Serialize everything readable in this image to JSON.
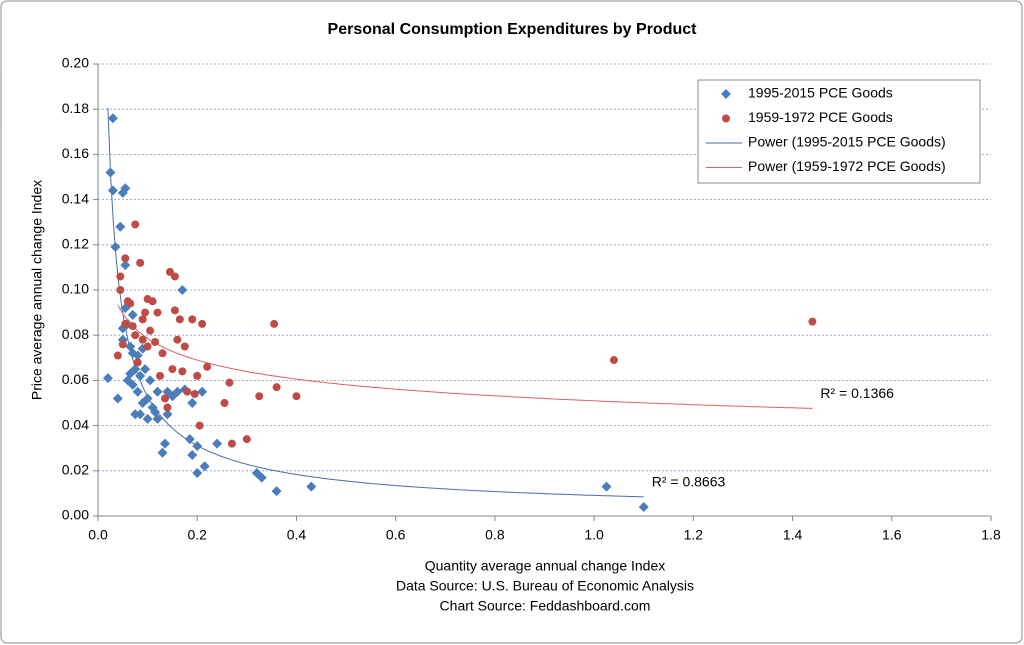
{
  "chart_data": {
    "type": "scatter",
    "title": "Personal Consumption Expenditures by Product",
    "xlabel": "Quantity average annual change Index",
    "sources": [
      "Data Source: U.S. Bureau of Economic Analysis",
      "Chart Source: Feddashboard.com"
    ],
    "ylabel": "Price average annual change Index",
    "xlim": [
      0,
      1.8
    ],
    "xticks": [
      {
        "value": 0,
        "label": "0.0"
      },
      {
        "value": 0.2,
        "label": "0.2"
      },
      {
        "value": 0.4,
        "label": "0.4"
      },
      {
        "value": 0.6,
        "label": "0.6"
      },
      {
        "value": 0.8,
        "label": "0.8"
      },
      {
        "value": 1,
        "label": "1.0"
      },
      {
        "value": 1.2,
        "label": "1.2"
      },
      {
        "value": 1.4,
        "label": "1.4"
      },
      {
        "value": 1.6,
        "label": "1.6"
      },
      {
        "value": 1.8,
        "label": "1.8"
      }
    ],
    "ylim": [
      0,
      0.2
    ],
    "yticks": [
      {
        "value": 0,
        "label": "0.00"
      },
      {
        "value": 0.02,
        "label": "0.02"
      },
      {
        "value": 0.04,
        "label": "0.04"
      },
      {
        "value": 0.06,
        "label": "0.06"
      },
      {
        "value": 0.08,
        "label": "0.08"
      },
      {
        "value": 0.1,
        "label": "0.10"
      },
      {
        "value": 0.12,
        "label": "0.12"
      },
      {
        "value": 0.14,
        "label": "0.14"
      },
      {
        "value": 0.16,
        "label": "0.16"
      },
      {
        "value": 0.18,
        "label": "0.18"
      },
      {
        "value": 0.2,
        "label": "0.20"
      }
    ],
    "grid": true,
    "legend": "top-right",
    "series": [
      {
        "name": "1995-2015 PCE Goods",
        "color": "#4a7ebb",
        "marker": "diamond",
        "x": [
          0.02,
          0.025,
          0.03,
          0.03,
          0.035,
          0.045,
          0.05,
          0.055,
          0.055,
          0.04,
          0.05,
          0.05,
          0.055,
          0.06,
          0.06,
          0.065,
          0.065,
          0.07,
          0.07,
          0.07,
          0.075,
          0.075,
          0.08,
          0.08,
          0.085,
          0.085,
          0.09,
          0.09,
          0.095,
          0.1,
          0.1,
          0.105,
          0.11,
          0.115,
          0.12,
          0.12,
          0.13,
          0.135,
          0.14,
          0.14,
          0.15,
          0.16,
          0.17,
          0.175,
          0.185,
          0.19,
          0.19,
          0.2,
          0.2,
          0.21,
          0.215,
          0.24,
          0.32,
          0.33,
          0.36,
          0.43,
          1.025,
          1.1
        ],
        "values": [
          0.061,
          0.152,
          0.176,
          0.144,
          0.119,
          0.128,
          0.143,
          0.145,
          0.111,
          0.052,
          0.078,
          0.083,
          0.092,
          0.085,
          0.06,
          0.063,
          0.075,
          0.089,
          0.072,
          0.058,
          0.065,
          0.045,
          0.071,
          0.055,
          0.062,
          0.045,
          0.05,
          0.074,
          0.065,
          0.043,
          0.052,
          0.06,
          0.048,
          0.046,
          0.043,
          0.055,
          0.028,
          0.032,
          0.045,
          0.055,
          0.053,
          0.055,
          0.1,
          0.056,
          0.034,
          0.027,
          0.05,
          0.019,
          0.031,
          0.055,
          0.022,
          0.032,
          0.019,
          0.017,
          0.011,
          0.013,
          0.013,
          0.004
        ],
        "trendline": {
          "type": "power",
          "name": "Power (1995-2015 PCE Goods)",
          "color": "#4a6ea8",
          "r2_label": "R² = 0.8663"
        }
      },
      {
        "name": "1959-1972 PCE Goods",
        "color": "#be4b48",
        "marker": "circle",
        "x": [
          0.045,
          0.045,
          0.055,
          0.04,
          0.05,
          0.055,
          0.06,
          0.065,
          0.07,
          0.075,
          0.075,
          0.08,
          0.085,
          0.09,
          0.09,
          0.095,
          0.1,
          0.1,
          0.105,
          0.11,
          0.115,
          0.12,
          0.125,
          0.13,
          0.135,
          0.14,
          0.145,
          0.15,
          0.155,
          0.155,
          0.16,
          0.165,
          0.17,
          0.175,
          0.18,
          0.19,
          0.195,
          0.2,
          0.205,
          0.21,
          0.22,
          0.255,
          0.265,
          0.27,
          0.3,
          0.325,
          0.355,
          0.36,
          0.4,
          1.04,
          1.44
        ],
        "values": [
          0.106,
          0.1,
          0.114,
          0.071,
          0.076,
          0.085,
          0.095,
          0.094,
          0.084,
          0.129,
          0.08,
          0.068,
          0.112,
          0.087,
          0.078,
          0.09,
          0.096,
          0.075,
          0.082,
          0.095,
          0.077,
          0.09,
          0.062,
          0.072,
          0.052,
          0.048,
          0.108,
          0.065,
          0.106,
          0.091,
          0.078,
          0.087,
          0.064,
          0.075,
          0.055,
          0.087,
          0.054,
          0.062,
          0.04,
          0.085,
          0.066,
          0.05,
          0.059,
          0.032,
          0.034,
          0.053,
          0.085,
          0.057,
          0.053,
          0.069,
          0.086
        ],
        "trendline": {
          "type": "power",
          "name": "Power (1959-1972 PCE Goods)",
          "color": "#e0605c",
          "r2_label": "R² = 0.1366"
        }
      }
    ]
  }
}
